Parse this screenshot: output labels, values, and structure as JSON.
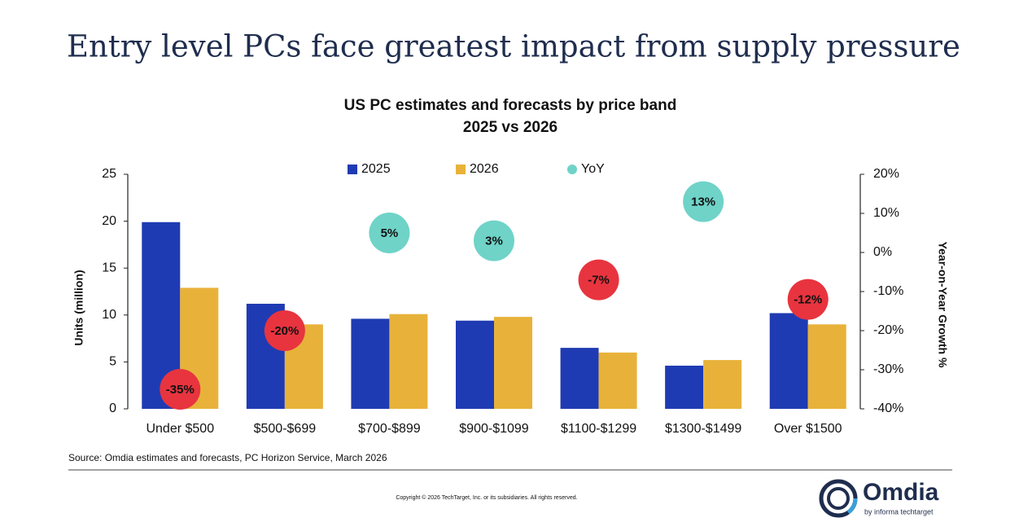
{
  "header": {
    "title": "Entry level PCs face greatest impact from supply pressure"
  },
  "chart_data": {
    "type": "bar",
    "title": "US PC estimates and forecasts by price band",
    "subtitle": "2025 vs 2026",
    "categories": [
      "Under $500",
      "$500-$699",
      "$700-$899",
      "$900-$1099",
      "$1100-$1299",
      "$1300-$1499",
      "Over $1500"
    ],
    "series": [
      {
        "name": "2025",
        "color": "#1f3bb3",
        "values": [
          19.9,
          11.2,
          9.6,
          9.4,
          6.5,
          4.6,
          10.2
        ]
      },
      {
        "name": "2026",
        "color": "#e8b23a",
        "values": [
          12.9,
          9.0,
          10.1,
          9.8,
          6.0,
          5.2,
          9.0
        ]
      },
      {
        "name": "YoY",
        "color": "#6fd3c8",
        "negative_color": "#e8343f",
        "axis": "y2",
        "type": "scatter",
        "values": [
          -35,
          -20,
          5,
          3,
          -7,
          13,
          -12
        ],
        "value_labels": [
          "-35%",
          "-20%",
          "5%",
          "3%",
          "-7%",
          "13%",
          "-12%"
        ]
      }
    ],
    "ylabel": "Units (million)",
    "y2label": "Year-on-Year Growth %",
    "ylim": [
      0,
      25
    ],
    "yticks": [
      0,
      5,
      10,
      15,
      20,
      25
    ],
    "y2lim": [
      -40,
      20
    ],
    "y2ticks": [
      {
        "value": -40,
        "label": "-40%"
      },
      {
        "value": -30,
        "label": "-30%"
      },
      {
        "value": -20,
        "label": "-20%"
      },
      {
        "value": -10,
        "label": "-10%"
      },
      {
        "value": 0,
        "label": "0%"
      },
      {
        "value": 10,
        "label": "10%"
      },
      {
        "value": 20,
        "label": "20%"
      }
    ],
    "grid": false,
    "legend": "top"
  },
  "footer": {
    "source": "Source: Omdia estimates and forecasts, PC Horizon Service, March 2026",
    "copyright": "Copyright © 2026 TechTarget, Inc. or its subsidiaries. All rights reserved.",
    "logo": "Omdia",
    "logo_tagline": "by informa techtarget"
  }
}
